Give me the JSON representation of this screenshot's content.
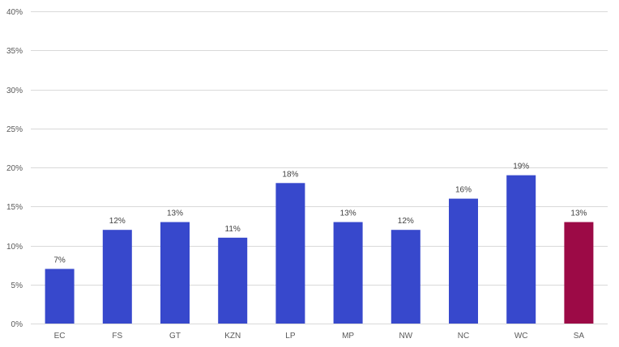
{
  "chart_data": {
    "type": "bar",
    "title": "",
    "xlabel": "",
    "ylabel": "",
    "categories": [
      "EC",
      "FS",
      "GT",
      "KZN",
      "LP",
      "MP",
      "NW",
      "NC",
      "WC",
      "SA"
    ],
    "values": [
      7,
      12,
      13,
      11,
      18,
      13,
      12,
      16,
      19,
      13
    ],
    "data_labels": [
      "7%",
      "12%",
      "13%",
      "11%",
      "18%",
      "13%",
      "12%",
      "16%",
      "19%",
      "13%"
    ],
    "ylim": [
      0,
      40
    ],
    "yticks": [
      0,
      5,
      10,
      15,
      20,
      25,
      30,
      35,
      40
    ],
    "ytick_labels": [
      "0%",
      "5%",
      "10%",
      "15%",
      "20%",
      "25%",
      "30%",
      "35%",
      "40%"
    ],
    "grid": true,
    "legend": "none",
    "colors": {
      "default_bar": "#3748cc",
      "highlight_bar": "#9c0a46",
      "gridline": "#d9d9d9",
      "text": "#595959"
    },
    "highlight_category": "SA"
  }
}
